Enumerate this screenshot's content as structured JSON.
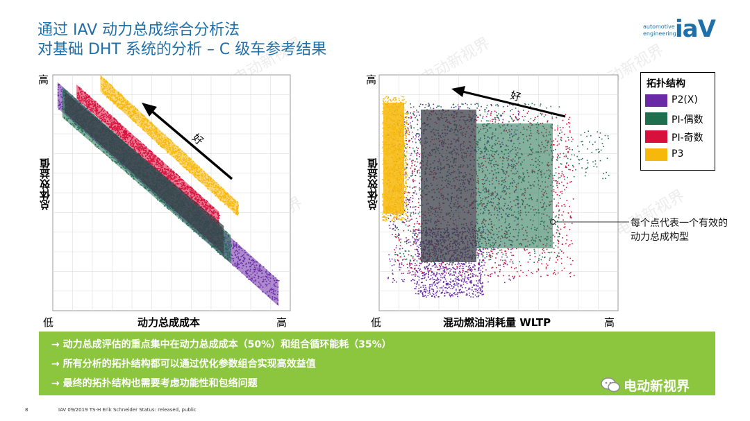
{
  "title": {
    "line1": "通过 IAV 动力总成综合分析法",
    "line2": "对基础 DHT 系统的分析 – C 级车参考结果"
  },
  "logo": {
    "small_line1": "automotive",
    "small_line2": "engineering",
    "big": "iaV"
  },
  "watermark": "电动新视界",
  "chart_data": [
    {
      "type": "scatter",
      "xlabel": "动力总成成本",
      "ylabel": "总体效益值",
      "x_low": "低",
      "x_high": "高",
      "y_high": "高",
      "annotation": "好",
      "xlim": [
        0,
        1
      ],
      "ylim": [
        0,
        1
      ],
      "grid": true,
      "series": [
        {
          "name": "P2(X)",
          "color": "#6a2aa6",
          "band": {
            "x": [
              0.02,
              0.95
            ],
            "y_top": [
              0.97,
              0.13
            ],
            "y_bot": [
              0.86,
              0.02
            ]
          }
        },
        {
          "name": "PI-偶数",
          "color": "#1f6f4f",
          "band": {
            "x": [
              0.04,
              0.75
            ],
            "y_top": [
              0.95,
              0.32
            ],
            "y_bot": [
              0.82,
              0.2
            ]
          }
        },
        {
          "name": "PI-奇数",
          "color": "#d8103c",
          "band": {
            "x": [
              0.1,
              0.7
            ],
            "y_top": [
              0.96,
              0.42
            ],
            "y_bot": [
              0.9,
              0.36
            ]
          }
        },
        {
          "name": "P3",
          "color": "#f7b80c",
          "band": {
            "x": [
              0.2,
              0.78
            ],
            "y_top": [
              1.0,
              0.46
            ],
            "y_bot": [
              0.93,
              0.4
            ]
          }
        }
      ]
    },
    {
      "type": "scatter",
      "xlabel": "混动燃油消耗量 WLTP",
      "ylabel": "总体效益值",
      "x_low": "低",
      "x_high": "高",
      "y_high": "高",
      "annotation": "好",
      "xlim": [
        0,
        1
      ],
      "ylim": [
        0,
        1
      ],
      "grid": true,
      "legend_title": "拓扑结构",
      "legend_position": "right",
      "series": [
        {
          "name": "P2(X)",
          "color": "#6a2aa6"
        },
        {
          "name": "PI-偶数",
          "color": "#1f6f4f"
        },
        {
          "name": "PI-奇数",
          "color": "#d8103c"
        },
        {
          "name": "P3",
          "color": "#f7b80c"
        }
      ]
    }
  ],
  "callout": "每个点代表一个有效的动力总成构型",
  "banner": {
    "items": [
      "→  动力总成评估的重点集中在动力总成成本（50%）和组合循环能耗（35%）",
      "→  所有分析的拓扑结构都可以通过优化参数组合实现高效益值",
      "→  最终的拓扑结构也需要考虑功能性和包络问题"
    ]
  },
  "wechat_label": "电动新视界",
  "footer": {
    "page": "8",
    "text": "IAV  09/2019  TS-H  Erik Schneider  Status: released, public"
  }
}
